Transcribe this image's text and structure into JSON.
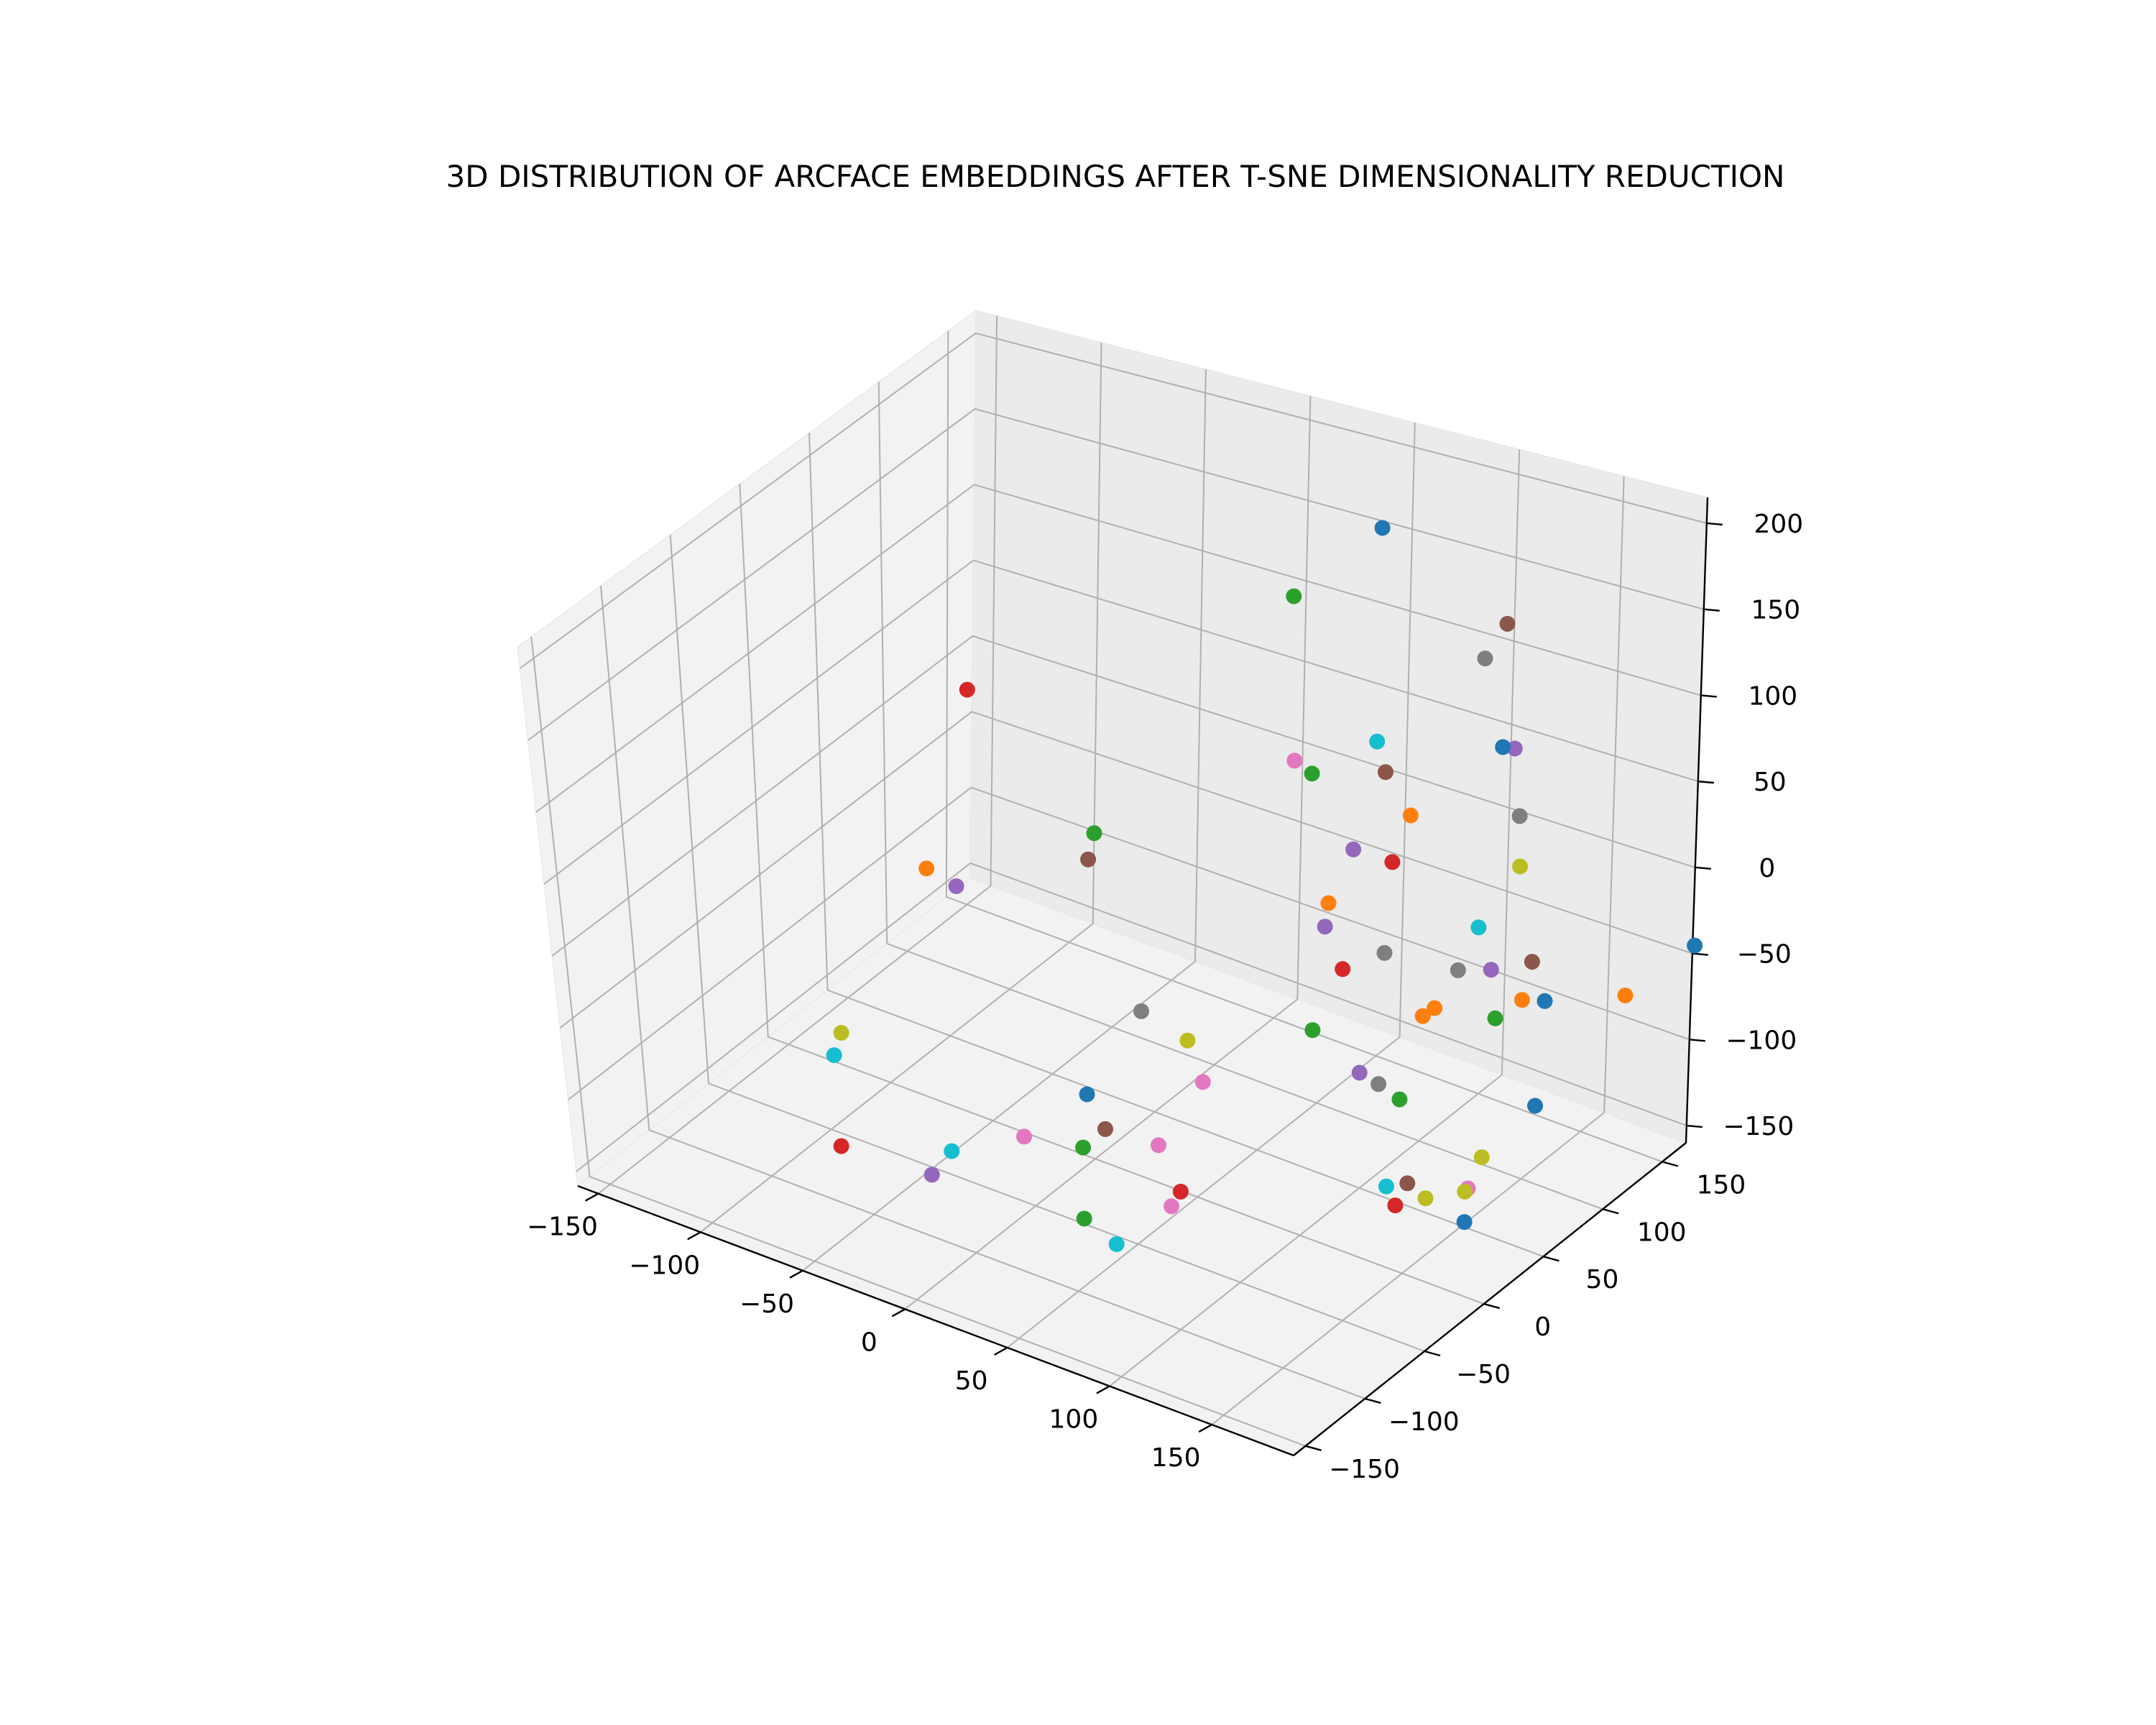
{
  "chart_data": {
    "type": "scatter",
    "title": "3D DISTRIBUTION OF ARCFACE EMBEDDINGS AFTER T-SNE DIMENSIONALITY REDUCTION",
    "xlabel": "",
    "ylabel": "",
    "zlabel": "",
    "xlim": [
      -160,
      190
    ],
    "ylim": [
      -160,
      170
    ],
    "zlim": [
      -160,
      215
    ],
    "x_ticks": [
      -150,
      -100,
      -50,
      0,
      50,
      100,
      150
    ],
    "y_ticks": [
      -150,
      -100,
      -50,
      0,
      50,
      100,
      150
    ],
    "z_ticks": [
      -150,
      -100,
      -50,
      0,
      50,
      100,
      150,
      200
    ],
    "x_tick_labels": [
      "−150",
      "−100",
      "−50",
      "0",
      "50",
      "100",
      "150"
    ],
    "y_tick_labels": [
      "−150",
      "−100",
      "−50",
      "0",
      "50",
      "100",
      "150"
    ],
    "z_tick_labels": [
      "−150",
      "−100",
      "−50",
      "0",
      "50",
      "100",
      "150",
      "200"
    ],
    "grid": true,
    "legend": "none",
    "points": [
      {
        "x": -31,
        "y": -39,
        "z": 185,
        "color": "#d62728"
      },
      {
        "x": 55,
        "y": 138,
        "z": 180,
        "color": "#1f77b4"
      },
      {
        "x": 124,
        "y": 123,
        "z": 161,
        "color": "#8c564b"
      },
      {
        "x": 156,
        "y": 76,
        "z": 141,
        "color": "#9467bd"
      },
      {
        "x": 31,
        "y": 109,
        "z": 152,
        "color": "#2ca02c"
      },
      {
        "x": 23,
        "y": -33,
        "z": 112,
        "color": "#2ca02c"
      },
      {
        "x": 140,
        "y": 94,
        "z": 117,
        "color": "#1f77b4"
      },
      {
        "x": 159,
        "y": 76,
        "z": 98,
        "color": "#7f7f7f"
      },
      {
        "x": 94,
        "y": 157,
        "z": 98,
        "color": "#7f7f7f"
      },
      {
        "x": 18,
        "y": -30,
        "z": 87,
        "color": "#8c564b"
      },
      {
        "x": 184,
        "y": 11,
        "z": 70,
        "color": "#9467bd"
      },
      {
        "x": 162,
        "y": 72,
        "z": 70,
        "color": "#bcbd22"
      },
      {
        "x": 37,
        "y": 101,
        "z": 55,
        "color": "#e377c2"
      },
      {
        "x": 68,
        "y": 115,
        "z": 70,
        "color": "#17becf"
      },
      {
        "x": 68,
        "y": 63,
        "z": 93,
        "color": "#2ca02c"
      },
      {
        "x": 67,
        "y": 124,
        "z": 43,
        "color": "#8c564b"
      },
      {
        "x": 91,
        "y": 104,
        "z": 42,
        "color": "#ff7f0e"
      },
      {
        "x": 175,
        "y": 61,
        "z": 23,
        "color": "#8c564b"
      },
      {
        "x": -57,
        "y": -34,
        "z": 37,
        "color": "#ff7f0e"
      },
      {
        "x": -43,
        "y": -34,
        "z": 33,
        "color": "#9467bd"
      },
      {
        "x": 78,
        "y": 112,
        "z": 0,
        "color": "#d62728"
      },
      {
        "x": 68,
        "y": 97,
        "z": 15,
        "color": "#9467bd"
      },
      {
        "x": 128,
        "y": 98,
        "z": -8,
        "color": "#17becf"
      },
      {
        "x": 145,
        "y": 33,
        "z": 0,
        "color": "#ff7f0e"
      },
      {
        "x": 93,
        "y": 32,
        "z": 29,
        "color": "#9467bd"
      },
      {
        "x": 64,
        "y": 84,
        "z": -12,
        "color": "#ff7f0e"
      },
      {
        "x": 104,
        "y": 62,
        "z": -8,
        "color": "#7f7f7f"
      },
      {
        "x": 40,
        "y": -27,
        "z": -12,
        "color": "#7f7f7f"
      },
      {
        "x": -45,
        "y": -124,
        "z": -4,
        "color": "#bcbd22"
      },
      {
        "x": 84,
        "y": 62,
        "z": -29,
        "color": "#d62728"
      },
      {
        "x": 157,
        "y": 85,
        "z": -31,
        "color": "#ff7f0e"
      },
      {
        "x": 118,
        "y": 99,
        "z": -41,
        "color": "#7f7f7f"
      },
      {
        "x": 121,
        "y": 65,
        "z": -44,
        "color": "#ff7f0e"
      },
      {
        "x": 186,
        "y": 121,
        "z": -42,
        "color": "#ff7f0e"
      },
      {
        "x": 191,
        "y": 170,
        "z": -45,
        "color": "#1f77b4"
      },
      {
        "x": 110,
        "y": 32,
        "z": -63,
        "color": "#9467bd"
      },
      {
        "x": 152,
        "y": 113,
        "z": -55,
        "color": "#1f77b4"
      },
      {
        "x": 75,
        "y": 53,
        "z": -68,
        "color": "#2ca02c"
      },
      {
        "x": 187,
        "y": 1,
        "z": -55,
        "color": "#bcbd22"
      },
      {
        "x": 31,
        "y": 25,
        "z": -78,
        "color": "#bcbd22"
      },
      {
        "x": 49,
        "y": 7,
        "z": -84,
        "color": "#e377c2"
      },
      {
        "x": 103,
        "y": 60,
        "z": -95,
        "color": "#7f7f7f"
      },
      {
        "x": -82,
        "y": -73,
        "z": -82,
        "color": "#17becf"
      },
      {
        "x": 109,
        "y": 147,
        "z": -108,
        "color": "#2ca02c"
      },
      {
        "x": 5,
        "y": -14,
        "z": -102,
        "color": "#1f77b4"
      },
      {
        "x": 26,
        "y": -53,
        "z": -100,
        "color": "#2ca02c"
      },
      {
        "x": 111,
        "y": 64,
        "z": -104,
        "color": "#2ca02c"
      },
      {
        "x": -47,
        "y": -127,
        "z": -88,
        "color": "#d62728"
      },
      {
        "x": 49,
        "y": -30,
        "z": -102,
        "color": "#e377c2"
      },
      {
        "x": -4,
        "y": -51,
        "z": -111,
        "color": "#e377c2"
      },
      {
        "x": 163,
        "y": 32,
        "z": -115,
        "color": "#e377c2"
      },
      {
        "x": 152,
        "y": 107,
        "z": -117,
        "color": "#1f77b4"
      },
      {
        "x": 144,
        "y": 4,
        "z": -117,
        "color": "#d62728"
      },
      {
        "x": 72,
        "y": -51,
        "z": -107,
        "color": "#d62728"
      },
      {
        "x": 161,
        "y": 33,
        "z": -119,
        "color": "#bcbd22"
      },
      {
        "x": 169,
        "y": 19,
        "z": -126,
        "color": "#1f77b4"
      },
      {
        "x": 13,
        "y": -13,
        "z": -123,
        "color": "#8c564b"
      },
      {
        "x": 136,
        "y": 28,
        "z": -123,
        "color": "#8c564b"
      },
      {
        "x": 59,
        "y": -37,
        "z": -136,
        "color": "#e377c2"
      },
      {
        "x": -40,
        "y": -51,
        "z": -142,
        "color": "#17becf"
      },
      {
        "x": 61,
        "y": -86,
        "z": -127,
        "color": "#17becf"
      },
      {
        "x": -35,
        "y": -76,
        "z": -139,
        "color": "#9467bd"
      },
      {
        "x": 34,
        "y": -67,
        "z": -138,
        "color": "#2ca02c"
      },
      {
        "x": 104,
        "y": 66,
        "z": -167,
        "color": "#17becf"
      },
      {
        "x": 122,
        "y": 68,
        "z": -167,
        "color": "#bcbd22"
      }
    ]
  }
}
